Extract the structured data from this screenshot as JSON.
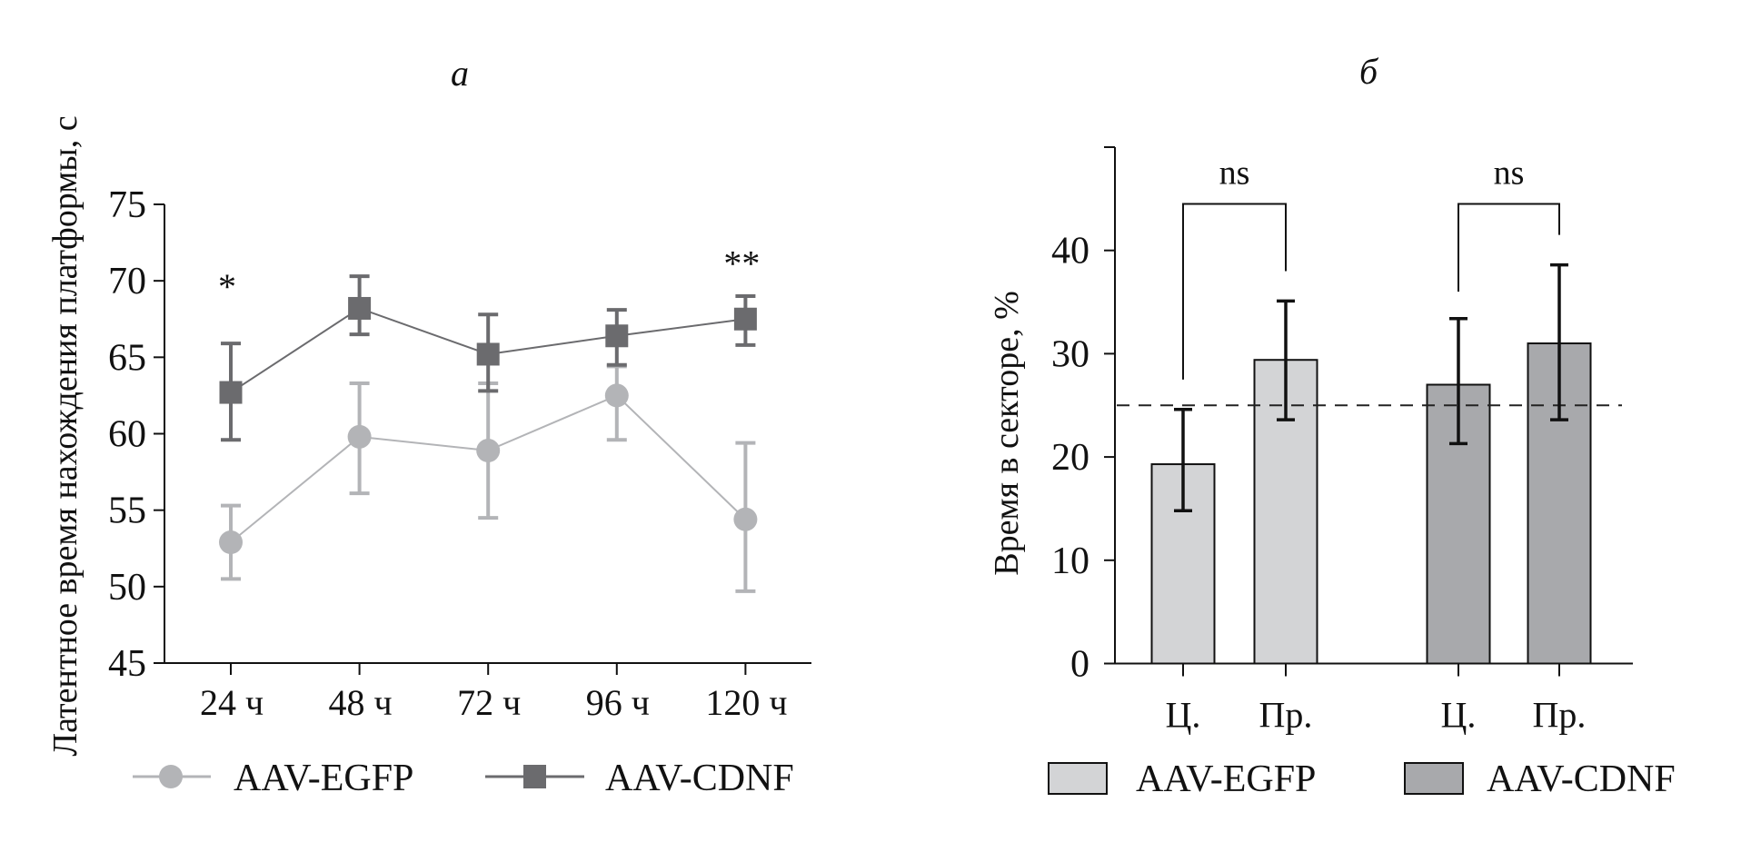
{
  "chart_data": [
    {
      "id": "a",
      "type": "line",
      "title": "а",
      "xlabel": "",
      "ylabel": "Латентное время нахождения платформы, с",
      "categories": [
        "24 ч",
        "48 ч",
        "72 ч",
        "96 ч",
        "120 ч"
      ],
      "ylim": [
        45,
        75
      ],
      "yticks": [
        "45",
        "50",
        "55",
        "60",
        "65",
        "70",
        "75"
      ],
      "grid": false,
      "legend_position": "bottom",
      "series": [
        {
          "name": "AAV-EGFP",
          "marker": "circle",
          "color": "#b3b4b7",
          "values": [
            52.9,
            59.8,
            58.9,
            62.5,
            54.4
          ],
          "error_upper": [
            55.3,
            63.3,
            63.3,
            64.4,
            59.4
          ],
          "error_lower": [
            50.5,
            56.1,
            54.5,
            59.6,
            49.7
          ]
        },
        {
          "name": "AAV-CDNF",
          "marker": "square",
          "color": "#6b6b6e",
          "values": [
            62.7,
            68.2,
            65.2,
            66.4,
            67.5
          ],
          "error_upper": [
            65.9,
            70.3,
            67.8,
            68.1,
            69.0
          ],
          "error_lower": [
            59.6,
            66.5,
            62.8,
            64.5,
            65.8
          ]
        }
      ],
      "annotations": [
        {
          "category": "24 ч",
          "text": "*",
          "value": 70.5
        },
        {
          "category": "120 ч",
          "text": "**",
          "value": 72.0
        }
      ]
    },
    {
      "id": "b",
      "type": "bar",
      "title": "б",
      "xlabel": "",
      "ylabel": "Время в секторе, %",
      "categories": [
        "Ц.",
        "Пр.",
        "Ц.",
        "Пр."
      ],
      "groups": [
        "AAV-EGFP",
        "AAV-EGFP",
        "AAV-CDNF",
        "AAV-CDNF"
      ],
      "values": [
        19.3,
        29.4,
        27.0,
        31.0
      ],
      "error_upper": [
        24.6,
        35.1,
        33.4,
        38.6
      ],
      "error_lower": [
        14.8,
        23.6,
        21.3,
        23.6
      ],
      "ylim": [
        0,
        50
      ],
      "yticks": [
        "0",
        "10",
        "20",
        "30",
        "40"
      ],
      "reference_line": {
        "value": 25,
        "style": "dashed"
      },
      "grid": false,
      "legend_position": "bottom",
      "legend": [
        {
          "name": "AAV-EGFP",
          "color": "#d3d4d6"
        },
        {
          "name": "AAV-CDNF",
          "color": "#a8a9ac"
        }
      ],
      "comparisons": [
        {
          "from": 0,
          "to": 1,
          "label": "ns",
          "level": 44.5,
          "left_end": 27.5,
          "right_end": 38.0
        },
        {
          "from": 2,
          "to": 3,
          "label": "ns",
          "level": 44.5,
          "left_end": 36.0,
          "right_end": 41.5
        }
      ]
    }
  ]
}
